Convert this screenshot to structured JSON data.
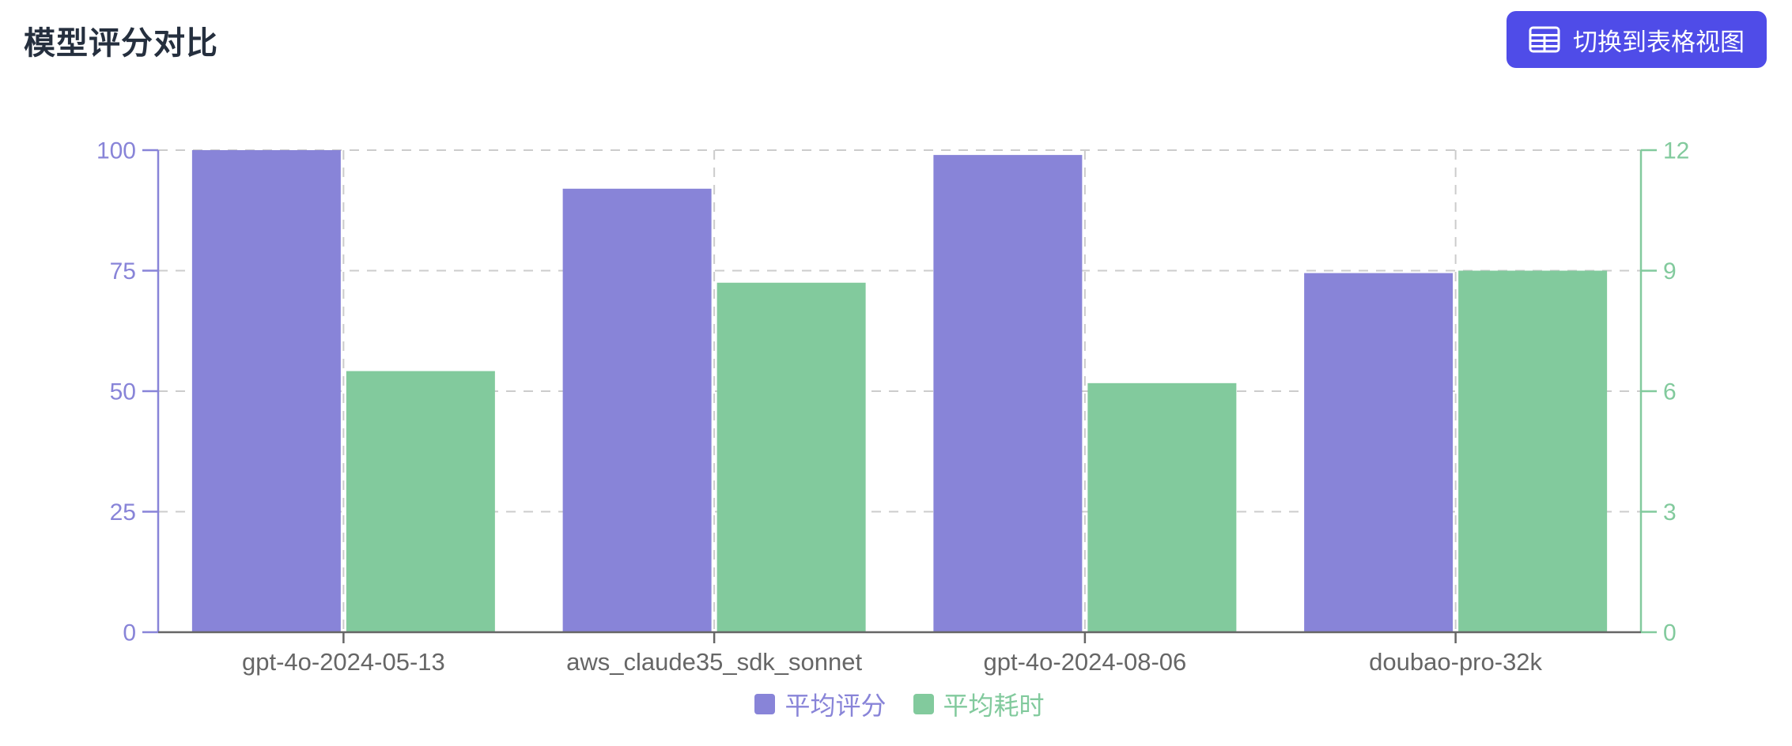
{
  "page": {
    "title": "模型评分对比"
  },
  "toolbar": {
    "switch_view_label": "切换到表格视图",
    "icon": "table-icon"
  },
  "colors": {
    "button": "#4f4ce8",
    "title_text": "#252f3e",
    "grid": "#cccccc",
    "axis": "#666666",
    "score_series": "#8884d8",
    "time_series": "#82ca9d",
    "background": "#ffffff"
  },
  "chart_data": {
    "type": "bar",
    "title": "模型评分对比",
    "categories": [
      "gpt-4o-2024-05-13",
      "aws_claude35_sdk_sonnet",
      "gpt-4o-2024-08-06",
      "doubao-pro-32k"
    ],
    "series": [
      {
        "name": "平均评分",
        "axis": "left",
        "color": "#8884d8",
        "values": [
          100,
          92,
          99,
          74.5
        ]
      },
      {
        "name": "平均耗时",
        "axis": "right",
        "color": "#82ca9d",
        "values": [
          6.5,
          8.7,
          6.2,
          9
        ]
      }
    ],
    "y_left": {
      "min": 0,
      "max": 100,
      "ticks": [
        0,
        25,
        50,
        75,
        100
      ],
      "color": "#8884d8"
    },
    "y_right": {
      "min": 0,
      "max": 12,
      "ticks": [
        0,
        3,
        6,
        9,
        12
      ],
      "color": "#82ca9d"
    },
    "xlabel": "",
    "ylabel_left": "",
    "ylabel_right": "",
    "grid": "dashed-horizontal-and-vertical",
    "legend_position": "bottom"
  }
}
